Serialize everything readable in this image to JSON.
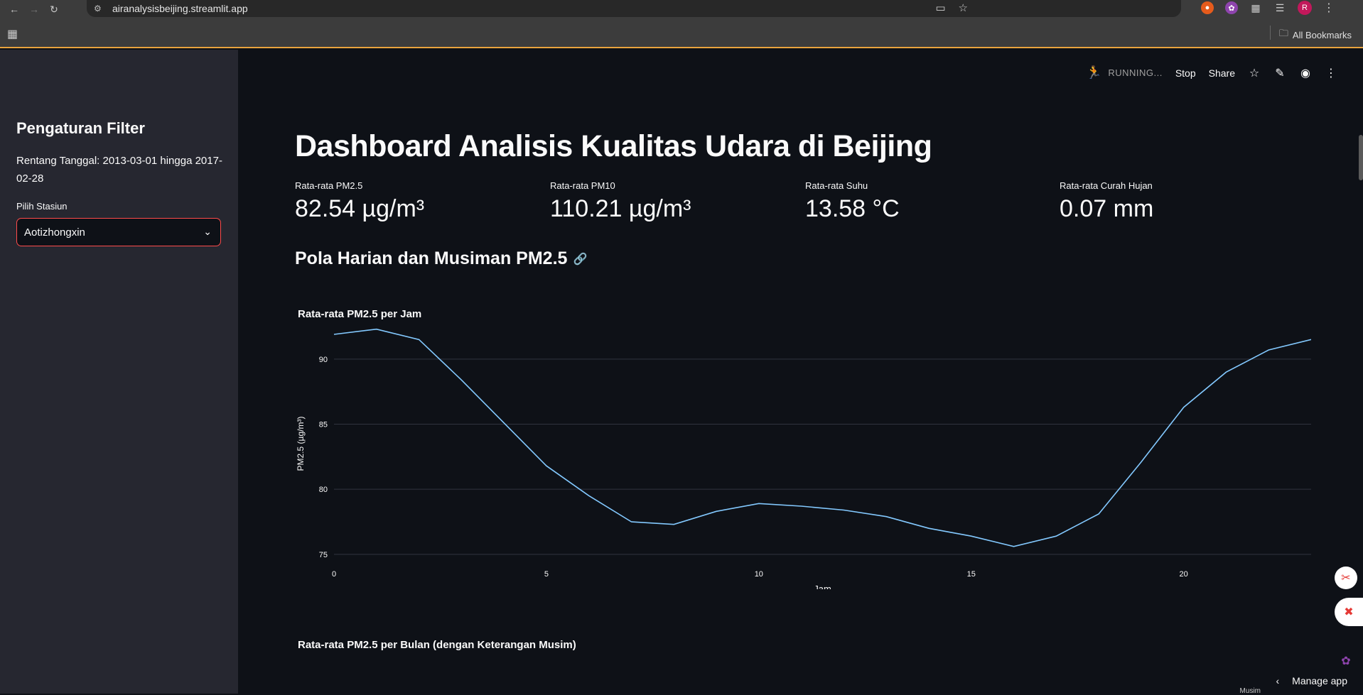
{
  "browser": {
    "url": "airanalysisbeijing.streamlit.app",
    "avatar_initial": "R",
    "all_bookmarks": "All Bookmarks"
  },
  "sidebar": {
    "title": "Pengaturan Filter",
    "date_range": "Rentang Tanggal: 2013-03-01 hingga 2017-02-28",
    "station_label": "Pilih Stasiun",
    "station_value": "Aotizhongxin"
  },
  "toolbar": {
    "status": "RUNNING...",
    "stop": "Stop",
    "share": "Share"
  },
  "main": {
    "title": "Dashboard Analisis Kualitas Udara di Beijing",
    "metrics": [
      {
        "label": "Rata-rata PM2.5",
        "value": "82.54 µg/m³"
      },
      {
        "label": "Rata-rata PM10",
        "value": "110.21 µg/m³"
      },
      {
        "label": "Rata-rata Suhu",
        "value": "13.58 °C"
      },
      {
        "label": "Rata-rata Curah Hujan",
        "value": "0.07 mm"
      }
    ],
    "section_title": "Pola Harian dan Musiman PM2.5",
    "chart2_title": "Rata-rata PM2.5 per Bulan (dengan Keterangan Musim)",
    "partial_legend": "Musim",
    "manage_app": "Manage app"
  },
  "chart_data": {
    "type": "line",
    "title": "Rata-rata PM2.5 per Jam",
    "xlabel": "Jam",
    "ylabel": "PM2.5 (µg/m³)",
    "xlim": [
      0,
      23
    ],
    "ylim": [
      74.5,
      92.5
    ],
    "x_ticks": [
      0,
      5,
      10,
      15,
      20
    ],
    "y_ticks": [
      75,
      80,
      85,
      90
    ],
    "grid": true,
    "line_color": "#83c9ff",
    "x": [
      0,
      1,
      2,
      3,
      4,
      5,
      6,
      7,
      8,
      9,
      10,
      11,
      12,
      13,
      14,
      15,
      16,
      17,
      18,
      19,
      20,
      21,
      22,
      23
    ],
    "values": [
      91.9,
      92.3,
      91.5,
      88.4,
      85.1,
      81.8,
      79.5,
      77.5,
      77.3,
      78.3,
      78.9,
      78.7,
      78.4,
      77.9,
      77.0,
      76.4,
      75.6,
      76.4,
      78.1,
      82.1,
      86.3,
      89.0,
      90.7,
      91.5
    ]
  }
}
